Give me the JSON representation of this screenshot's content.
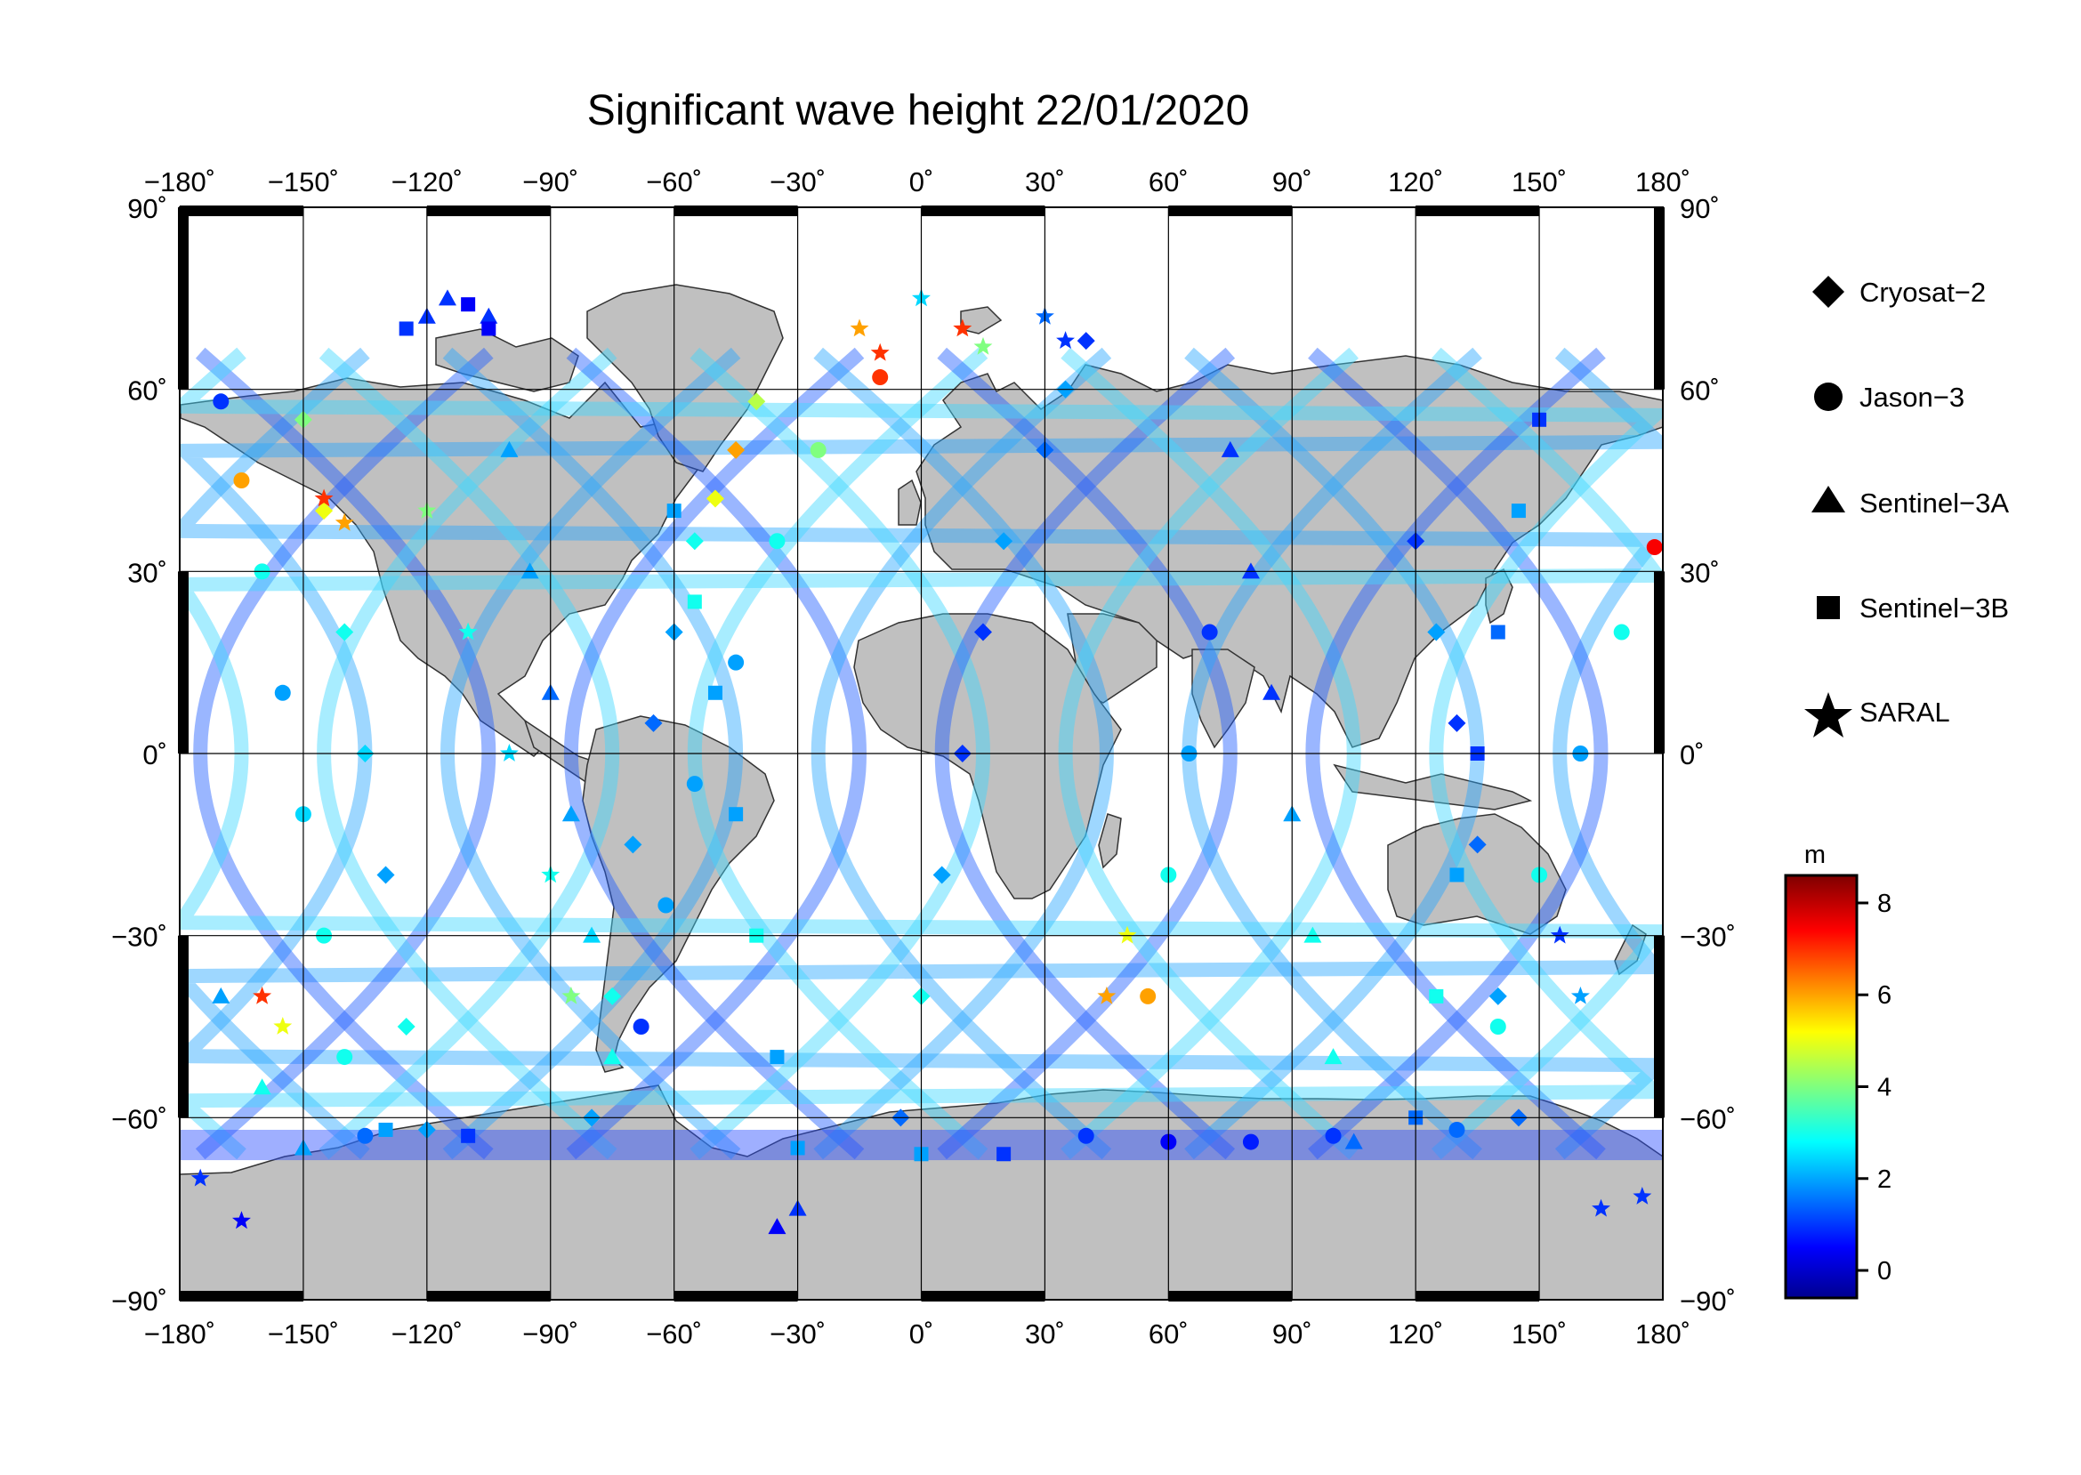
{
  "title": "Significant wave height 22/01/2020",
  "map": {
    "lon_range": [
      -180,
      180
    ],
    "lat_range": [
      -90,
      90
    ],
    "x_ticks": [
      "−180˚",
      "−150˚",
      "−120˚",
      "−90˚",
      "−60˚",
      "−30˚",
      "0˚",
      "30˚",
      "60˚",
      "90˚",
      "120˚",
      "150˚",
      "180˚"
    ],
    "y_ticks": [
      "90˚",
      "60˚",
      "30˚",
      "0˚",
      "−30˚",
      "−60˚",
      "−90˚"
    ],
    "grid": true,
    "land_color": "#c0c0c0",
    "ocean_color": "#ffffff"
  },
  "legend": {
    "position": "right",
    "items": [
      {
        "label": "Cryosat−2",
        "symbol": "diamond"
      },
      {
        "label": "Jason−3",
        "symbol": "circle"
      },
      {
        "label": "Sentinel−3A",
        "symbol": "triangle"
      },
      {
        "label": "Sentinel−3B",
        "symbol": "square"
      },
      {
        "label": "SARAL",
        "symbol": "star"
      }
    ]
  },
  "colorbar": {
    "unit": "m",
    "min": -0.6,
    "max": 8.6,
    "ticks": [
      "8",
      "6",
      "4",
      "2",
      "0"
    ],
    "tick_values": [
      8,
      6,
      4,
      2,
      0
    ],
    "colormap": "jet"
  },
  "chart_data": {
    "type": "scatter",
    "title": "Significant wave height 22/01/2020",
    "x_label": "",
    "y_label": "",
    "x_range": [
      -180,
      180
    ],
    "y_range": [
      -90,
      90
    ],
    "color_unit": "m",
    "color_range": [
      -0.6,
      8.6
    ],
    "series": [
      {
        "name": "Cryosat−2",
        "symbol": "diamond",
        "points": [
          [
            -40,
            58,
            4.5
          ],
          [
            -45,
            50,
            6
          ],
          [
            -50,
            42,
            5
          ],
          [
            -55,
            35,
            3
          ],
          [
            -60,
            20,
            2
          ],
          [
            -65,
            5,
            1.5
          ],
          [
            -70,
            -15,
            2
          ],
          [
            -75,
            -40,
            3
          ],
          [
            -80,
            -60,
            2
          ],
          [
            40,
            68,
            1
          ],
          [
            35,
            60,
            2
          ],
          [
            30,
            50,
            1.5
          ],
          [
            20,
            35,
            2
          ],
          [
            15,
            20,
            1
          ],
          [
            10,
            0,
            1
          ],
          [
            5,
            -20,
            2
          ],
          [
            0,
            -40,
            3
          ],
          [
            -5,
            -60,
            1.5
          ],
          [
            120,
            35,
            1
          ],
          [
            125,
            20,
            2
          ],
          [
            130,
            5,
            1
          ],
          [
            135,
            -15,
            1.5
          ],
          [
            140,
            -40,
            2
          ],
          [
            145,
            -60,
            1.5
          ],
          [
            -150,
            55,
            4
          ],
          [
            -145,
            40,
            5
          ],
          [
            -140,
            20,
            3
          ],
          [
            -135,
            0,
            2.5
          ],
          [
            -130,
            -20,
            2
          ],
          [
            -125,
            -45,
            3
          ],
          [
            -120,
            -62,
            2
          ]
        ]
      },
      {
        "name": "Jason−3",
        "symbol": "circle",
        "points": [
          [
            -170,
            58,
            1
          ],
          [
            -165,
            45,
            6
          ],
          [
            -160,
            30,
            3
          ],
          [
            -155,
            10,
            2
          ],
          [
            -150,
            -10,
            2.5
          ],
          [
            -145,
            -30,
            3
          ],
          [
            -140,
            -50,
            3
          ],
          [
            -135,
            -63,
            1.5
          ],
          [
            -10,
            62,
            7
          ],
          [
            -25,
            50,
            4
          ],
          [
            -35,
            35,
            3
          ],
          [
            -45,
            15,
            2
          ],
          [
            -55,
            -5,
            2
          ],
          [
            -62,
            -25,
            2
          ],
          [
            -68,
            -45,
            1
          ],
          [
            55,
            -40,
            6
          ],
          [
            60,
            -20,
            3
          ],
          [
            65,
            0,
            2
          ],
          [
            70,
            20,
            1
          ],
          [
            178,
            34,
            7.5
          ],
          [
            170,
            20,
            3
          ],
          [
            160,
            0,
            2
          ],
          [
            150,
            -20,
            3
          ],
          [
            140,
            -45,
            3
          ],
          [
            130,
            -62,
            1.5
          ],
          [
            100,
            -63,
            1
          ],
          [
            80,
            -64,
            0.8
          ],
          [
            60,
            -64,
            0.5
          ],
          [
            40,
            -63,
            1
          ]
        ]
      },
      {
        "name": "Sentinel−3A",
        "symbol": "triangle",
        "points": [
          [
            -120,
            72,
            1
          ],
          [
            -115,
            75,
            1
          ],
          [
            -105,
            72,
            1
          ],
          [
            -30,
            -75,
            1
          ],
          [
            -35,
            -78,
            0.5
          ],
          [
            -100,
            50,
            2
          ],
          [
            -95,
            30,
            2
          ],
          [
            -90,
            10,
            1.5
          ],
          [
            -85,
            -10,
            2
          ],
          [
            -80,
            -30,
            2.5
          ],
          [
            -75,
            -50,
            3
          ],
          [
            75,
            50,
            1
          ],
          [
            80,
            30,
            1
          ],
          [
            85,
            10,
            1
          ],
          [
            90,
            -10,
            2
          ],
          [
            95,
            -30,
            3
          ],
          [
            100,
            -50,
            3
          ],
          [
            105,
            -64,
            1.5
          ],
          [
            -170,
            -40,
            2
          ],
          [
            -160,
            -55,
            3
          ],
          [
            -150,
            -65,
            2
          ]
        ]
      },
      {
        "name": "Sentinel−3B",
        "symbol": "square",
        "points": [
          [
            -125,
            70,
            1
          ],
          [
            -110,
            74,
            0.5
          ],
          [
            -105,
            70,
            0.5
          ],
          [
            -60,
            40,
            2
          ],
          [
            -55,
            25,
            3
          ],
          [
            -50,
            10,
            2
          ],
          [
            -45,
            -10,
            2
          ],
          [
            -40,
            -30,
            3
          ],
          [
            -35,
            -50,
            2
          ],
          [
            -30,
            -65,
            2
          ],
          [
            150,
            55,
            1
          ],
          [
            145,
            40,
            2
          ],
          [
            140,
            20,
            1.5
          ],
          [
            135,
            0,
            1
          ],
          [
            130,
            -20,
            2
          ],
          [
            125,
            -40,
            3
          ],
          [
            120,
            -60,
            1.5
          ],
          [
            -130,
            -62,
            2
          ],
          [
            -110,
            -63,
            1
          ],
          [
            0,
            -66,
            2
          ],
          [
            20,
            -66,
            1
          ]
        ]
      },
      {
        "name": "SARAL",
        "symbol": "star",
        "points": [
          [
            -15,
            70,
            6
          ],
          [
            -10,
            66,
            7
          ],
          [
            0,
            75,
            2.5
          ],
          [
            10,
            70,
            7
          ],
          [
            15,
            67,
            4
          ],
          [
            -145,
            42,
            7
          ],
          [
            -140,
            38,
            6
          ],
          [
            -160,
            -40,
            7
          ],
          [
            -155,
            -45,
            5
          ],
          [
            -120,
            40,
            4
          ],
          [
            -110,
            20,
            3
          ],
          [
            -100,
            0,
            2.5
          ],
          [
            -90,
            -20,
            3
          ],
          [
            -85,
            -40,
            4
          ],
          [
            30,
            72,
            1.5
          ],
          [
            35,
            68,
            1
          ],
          [
            155,
            -30,
            1
          ],
          [
            160,
            -40,
            2
          ],
          [
            165,
            -75,
            1
          ],
          [
            175,
            -73,
            1
          ],
          [
            -175,
            -70,
            1
          ],
          [
            -165,
            -77,
            0.5
          ],
          [
            45,
            -40,
            6
          ],
          [
            50,
            -30,
            5
          ]
        ]
      }
    ]
  }
}
